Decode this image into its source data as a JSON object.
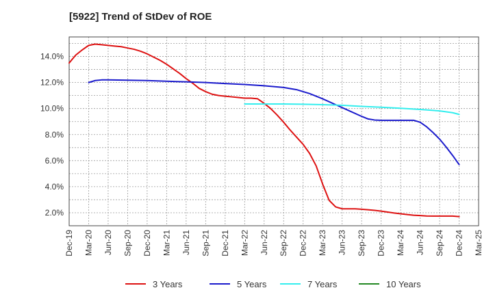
{
  "chart_data": {
    "type": "line",
    "title": "[5922]  Trend of StDev of ROE",
    "xlabel": "",
    "ylabel": "",
    "x_ticks": [
      "Dec-19",
      "Mar-20",
      "Jun-20",
      "Sep-20",
      "Dec-20",
      "Mar-21",
      "Jun-21",
      "Sep-21",
      "Dec-21",
      "Mar-22",
      "Jun-22",
      "Sep-22",
      "Dec-22",
      "Mar-23",
      "Jun-23",
      "Sep-23",
      "Dec-23",
      "Mar-24",
      "Jun-24",
      "Sep-24",
      "Dec-24",
      "Mar-25"
    ],
    "y_ticks": [
      "2.0%",
      "4.0%",
      "6.0%",
      "8.0%",
      "10.0%",
      "12.0%",
      "14.0%"
    ],
    "y_tick_values": [
      2,
      4,
      6,
      8,
      10,
      12,
      14
    ],
    "ylim": [
      1,
      15.5
    ],
    "xlim": [
      "2019-12",
      "2025-03"
    ],
    "grid": true,
    "legend_position": "bottom",
    "series": [
      {
        "name": "3 Years",
        "color": "#dd1111",
        "points": [
          [
            "2019-12",
            13.5
          ],
          [
            "2020-01",
            14.1
          ],
          [
            "2020-02",
            14.5
          ],
          [
            "2020-03",
            14.85
          ],
          [
            "2020-04",
            14.95
          ],
          [
            "2020-05",
            14.9
          ],
          [
            "2020-06",
            14.85
          ],
          [
            "2020-07",
            14.8
          ],
          [
            "2020-08",
            14.75
          ],
          [
            "2020-09",
            14.65
          ],
          [
            "2020-10",
            14.55
          ],
          [
            "2020-11",
            14.4
          ],
          [
            "2020-12",
            14.2
          ],
          [
            "2021-01",
            13.95
          ],
          [
            "2021-02",
            13.7
          ],
          [
            "2021-03",
            13.4
          ],
          [
            "2021-04",
            13.05
          ],
          [
            "2021-05",
            12.7
          ],
          [
            "2021-06",
            12.3
          ],
          [
            "2021-07",
            11.95
          ],
          [
            "2021-08",
            11.55
          ],
          [
            "2021-09",
            11.3
          ],
          [
            "2021-10",
            11.1
          ],
          [
            "2021-11",
            11.0
          ],
          [
            "2021-12",
            10.95
          ],
          [
            "2022-01",
            10.9
          ],
          [
            "2022-02",
            10.85
          ],
          [
            "2022-03",
            10.8
          ],
          [
            "2022-04",
            10.8
          ],
          [
            "2022-05",
            10.75
          ],
          [
            "2022-06",
            10.4
          ],
          [
            "2022-07",
            10.0
          ],
          [
            "2022-08",
            9.5
          ],
          [
            "2022-09",
            8.95
          ],
          [
            "2022-10",
            8.35
          ],
          [
            "2022-11",
            7.8
          ],
          [
            "2022-12",
            7.25
          ],
          [
            "2023-01",
            6.55
          ],
          [
            "2023-02",
            5.6
          ],
          [
            "2023-03",
            4.2
          ],
          [
            "2023-04",
            2.95
          ],
          [
            "2023-05",
            2.45
          ],
          [
            "2023-06",
            2.3
          ],
          [
            "2023-07",
            2.3
          ],
          [
            "2023-08",
            2.3
          ],
          [
            "2023-09",
            2.27
          ],
          [
            "2023-10",
            2.23
          ],
          [
            "2023-11",
            2.18
          ],
          [
            "2023-12",
            2.12
          ],
          [
            "2024-01",
            2.05
          ],
          [
            "2024-02",
            1.98
          ],
          [
            "2024-03",
            1.92
          ],
          [
            "2024-04",
            1.86
          ],
          [
            "2024-05",
            1.81
          ],
          [
            "2024-06",
            1.78
          ],
          [
            "2024-07",
            1.75
          ],
          [
            "2024-08",
            1.74
          ],
          [
            "2024-09",
            1.74
          ],
          [
            "2024-10",
            1.74
          ],
          [
            "2024-11",
            1.74
          ],
          [
            "2024-12",
            1.7
          ]
        ]
      },
      {
        "name": "5 Years",
        "color": "#1a1acc",
        "points": [
          [
            "2020-03",
            12.0
          ],
          [
            "2020-04",
            12.15
          ],
          [
            "2020-05",
            12.2
          ],
          [
            "2020-06",
            12.2
          ],
          [
            "2020-09",
            12.18
          ],
          [
            "2020-12",
            12.15
          ],
          [
            "2021-03",
            12.1
          ],
          [
            "2021-06",
            12.05
          ],
          [
            "2021-09",
            12.0
          ],
          [
            "2021-12",
            11.92
          ],
          [
            "2022-03",
            11.85
          ],
          [
            "2022-06",
            11.75
          ],
          [
            "2022-09",
            11.62
          ],
          [
            "2022-11",
            11.45
          ],
          [
            "2023-01",
            11.15
          ],
          [
            "2023-03",
            10.75
          ],
          [
            "2023-05",
            10.3
          ],
          [
            "2023-07",
            9.85
          ],
          [
            "2023-09",
            9.4
          ],
          [
            "2023-10",
            9.2
          ],
          [
            "2023-11",
            9.12
          ],
          [
            "2023-12",
            9.1
          ],
          [
            "2024-02",
            9.1
          ],
          [
            "2024-04",
            9.1
          ],
          [
            "2024-05",
            9.1
          ],
          [
            "2024-06",
            8.95
          ],
          [
            "2024-07",
            8.6
          ],
          [
            "2024-08",
            8.15
          ],
          [
            "2024-09",
            7.65
          ],
          [
            "2024-10",
            7.05
          ],
          [
            "2024-11",
            6.4
          ],
          [
            "2024-12",
            5.7
          ]
        ]
      },
      {
        "name": "7 Years",
        "color": "#33eeee",
        "points": [
          [
            "2022-03",
            10.35
          ],
          [
            "2022-06",
            10.35
          ],
          [
            "2022-09",
            10.35
          ],
          [
            "2022-12",
            10.33
          ],
          [
            "2023-03",
            10.3
          ],
          [
            "2023-06",
            10.25
          ],
          [
            "2023-09",
            10.17
          ],
          [
            "2023-12",
            10.1
          ],
          [
            "2024-03",
            10.02
          ],
          [
            "2024-06",
            9.93
          ],
          [
            "2024-09",
            9.82
          ],
          [
            "2024-11",
            9.68
          ],
          [
            "2024-12",
            9.55
          ]
        ]
      },
      {
        "name": "10 Years",
        "color": "#228822",
        "points": []
      }
    ]
  }
}
